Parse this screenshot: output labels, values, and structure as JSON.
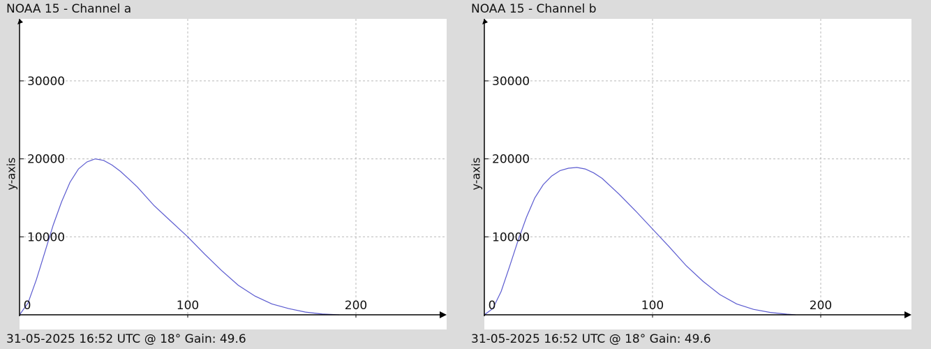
{
  "chart_data": [
    {
      "type": "line",
      "title": "NOAA 15 - Channel a",
      "footer": "31-05-2025 16:52 UTC @ 18° Gain: 49.6",
      "xlabel": "",
      "ylabel": "y-axis",
      "xlim": [
        0,
        255
      ],
      "ylim": [
        0,
        38000
      ],
      "x_ticks": [
        "0",
        "100",
        "200"
      ],
      "y_ticks": [
        "10000",
        "20000",
        "30000"
      ],
      "grid": true,
      "line_color": "#5b5bd0",
      "series": [
        {
          "x": [
            0,
            5,
            10,
            15,
            20,
            25,
            30,
            35,
            40,
            45,
            50,
            55,
            60,
            65,
            70,
            80,
            90,
            100,
            110,
            120,
            130,
            140,
            150,
            160,
            170,
            180,
            190
          ],
          "y": [
            0,
            1500,
            4500,
            8000,
            11500,
            14500,
            17000,
            18700,
            19600,
            20000,
            19800,
            19200,
            18400,
            17400,
            16400,
            14000,
            12000,
            10000,
            7800,
            5700,
            3800,
            2400,
            1400,
            800,
            350,
            100,
            0
          ]
        }
      ]
    },
    {
      "type": "line",
      "title": "NOAA 15 - Channel b",
      "footer": "31-05-2025 16:52 UTC @ 18° Gain: 49.6",
      "xlabel": "",
      "ylabel": "y-axis",
      "xlim": [
        0,
        255
      ],
      "ylim": [
        0,
        38000
      ],
      "x_ticks": [
        "0",
        "100",
        "200"
      ],
      "y_ticks": [
        "10000",
        "20000",
        "30000"
      ],
      "grid": true,
      "line_color": "#5b5bd0",
      "series": [
        {
          "x": [
            0,
            5,
            10,
            15,
            20,
            25,
            30,
            35,
            40,
            45,
            50,
            55,
            60,
            65,
            70,
            80,
            90,
            100,
            110,
            120,
            130,
            140,
            150,
            160,
            170,
            180,
            185
          ],
          "y": [
            0,
            800,
            3000,
            6200,
            9500,
            12500,
            15000,
            16700,
            17800,
            18500,
            18800,
            18900,
            18700,
            18200,
            17500,
            15500,
            13300,
            11000,
            8700,
            6300,
            4300,
            2600,
            1400,
            700,
            300,
            80,
            0
          ]
        }
      ]
    }
  ]
}
